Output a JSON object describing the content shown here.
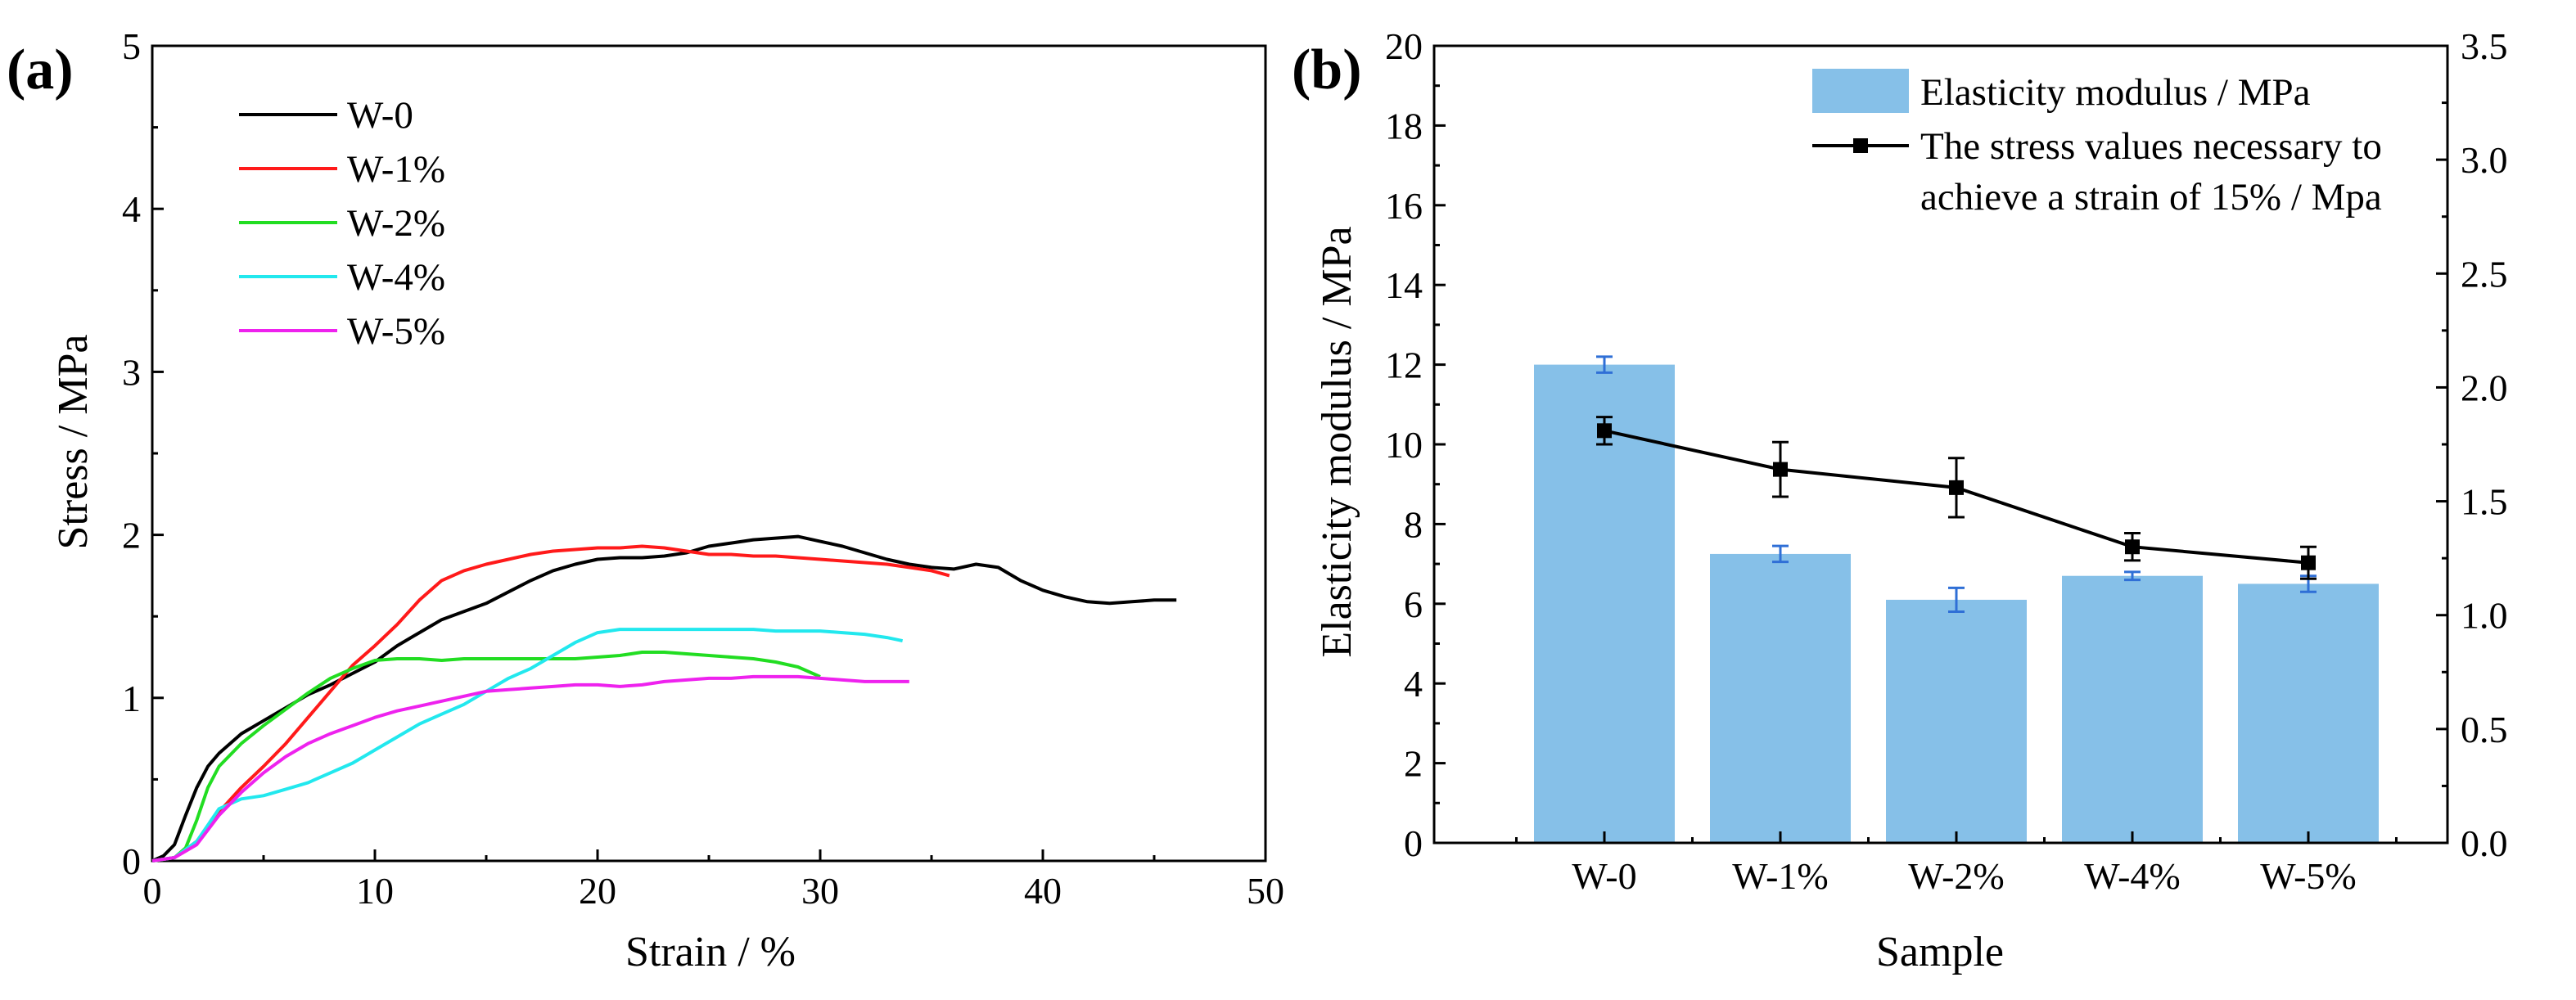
{
  "figure": {
    "panel_a_label": "(a)",
    "panel_b_label": "(b)"
  },
  "chart_data": [
    {
      "type": "line",
      "id": "a",
      "xlabel": "Strain / %",
      "ylabel": "Stress / MPa",
      "xlim": [
        0,
        50
      ],
      "ylim": [
        0,
        5
      ],
      "xticks": [
        0,
        10,
        20,
        30,
        40,
        50
      ],
      "yticks": [
        0,
        1,
        2,
        3,
        4,
        5
      ],
      "legend_position": "top-left",
      "series": [
        {
          "name": "W-0",
          "color": "#000000",
          "points": [
            [
              0,
              0
            ],
            [
              0.5,
              0.03
            ],
            [
              1,
              0.1
            ],
            [
              1.5,
              0.28
            ],
            [
              2,
              0.45
            ],
            [
              2.5,
              0.58
            ],
            [
              3,
              0.66
            ],
            [
              4,
              0.78
            ],
            [
              5,
              0.86
            ],
            [
              6,
              0.94
            ],
            [
              7,
              1.02
            ],
            [
              8,
              1.08
            ],
            [
              9,
              1.15
            ],
            [
              10,
              1.22
            ],
            [
              11,
              1.32
            ],
            [
              12,
              1.4
            ],
            [
              13,
              1.48
            ],
            [
              14,
              1.53
            ],
            [
              15,
              1.58
            ],
            [
              16,
              1.65
            ],
            [
              17,
              1.72
            ],
            [
              18,
              1.78
            ],
            [
              19,
              1.82
            ],
            [
              20,
              1.85
            ],
            [
              21,
              1.86
            ],
            [
              22,
              1.86
            ],
            [
              23,
              1.87
            ],
            [
              24,
              1.89
            ],
            [
              25,
              1.93
            ],
            [
              26,
              1.95
            ],
            [
              27,
              1.97
            ],
            [
              28,
              1.98
            ],
            [
              29,
              1.99
            ],
            [
              30,
              1.96
            ],
            [
              31,
              1.93
            ],
            [
              32,
              1.89
            ],
            [
              33,
              1.85
            ],
            [
              34,
              1.82
            ],
            [
              35,
              1.8
            ],
            [
              36,
              1.79
            ],
            [
              37,
              1.82
            ],
            [
              38,
              1.8
            ],
            [
              39,
              1.72
            ],
            [
              40,
              1.66
            ],
            [
              41,
              1.62
            ],
            [
              42,
              1.59
            ],
            [
              43,
              1.58
            ],
            [
              44,
              1.59
            ],
            [
              45,
              1.6
            ],
            [
              46,
              1.6
            ]
          ]
        },
        {
          "name": "W-1%",
          "color": "#ff1a1a",
          "points": [
            [
              0,
              0
            ],
            [
              1,
              0.02
            ],
            [
              2,
              0.12
            ],
            [
              3,
              0.3
            ],
            [
              4,
              0.45
            ],
            [
              5,
              0.58
            ],
            [
              6,
              0.72
            ],
            [
              7,
              0.88
            ],
            [
              8,
              1.04
            ],
            [
              9,
              1.2
            ],
            [
              10,
              1.32
            ],
            [
              11,
              1.45
            ],
            [
              12,
              1.6
            ],
            [
              13,
              1.72
            ],
            [
              14,
              1.78
            ],
            [
              15,
              1.82
            ],
            [
              16,
              1.85
            ],
            [
              17,
              1.88
            ],
            [
              18,
              1.9
            ],
            [
              19,
              1.91
            ],
            [
              20,
              1.92
            ],
            [
              21,
              1.92
            ],
            [
              22,
              1.93
            ],
            [
              23,
              1.92
            ],
            [
              24,
              1.9
            ],
            [
              25,
              1.88
            ],
            [
              26,
              1.88
            ],
            [
              27,
              1.87
            ],
            [
              28,
              1.87
            ],
            [
              29,
              1.86
            ],
            [
              30,
              1.85
            ],
            [
              31,
              1.84
            ],
            [
              32,
              1.83
            ],
            [
              33,
              1.82
            ],
            [
              34,
              1.8
            ],
            [
              35,
              1.78
            ],
            [
              35.8,
              1.75
            ]
          ]
        },
        {
          "name": "W-2%",
          "color": "#22dd22",
          "points": [
            [
              0,
              0
            ],
            [
              1,
              0.02
            ],
            [
              1.5,
              0.08
            ],
            [
              2,
              0.25
            ],
            [
              2.5,
              0.45
            ],
            [
              3,
              0.58
            ],
            [
              4,
              0.72
            ],
            [
              5,
              0.83
            ],
            [
              6,
              0.93
            ],
            [
              7,
              1.03
            ],
            [
              8,
              1.12
            ],
            [
              9,
              1.18
            ],
            [
              10,
              1.23
            ],
            [
              11,
              1.24
            ],
            [
              12,
              1.24
            ],
            [
              13,
              1.23
            ],
            [
              14,
              1.24
            ],
            [
              15,
              1.24
            ],
            [
              16,
              1.24
            ],
            [
              17,
              1.24
            ],
            [
              18,
              1.24
            ],
            [
              19,
              1.24
            ],
            [
              20,
              1.25
            ],
            [
              21,
              1.26
            ],
            [
              22,
              1.28
            ],
            [
              23,
              1.28
            ],
            [
              24,
              1.27
            ],
            [
              25,
              1.26
            ],
            [
              26,
              1.25
            ],
            [
              27,
              1.24
            ],
            [
              28,
              1.22
            ],
            [
              29,
              1.19
            ],
            [
              30,
              1.13
            ]
          ]
        },
        {
          "name": "W-4%",
          "color": "#22e8ee",
          "points": [
            [
              0,
              0
            ],
            [
              1,
              0.02
            ],
            [
              2,
              0.12
            ],
            [
              3,
              0.32
            ],
            [
              4,
              0.38
            ],
            [
              5,
              0.4
            ],
            [
              6,
              0.44
            ],
            [
              7,
              0.48
            ],
            [
              8,
              0.54
            ],
            [
              9,
              0.6
            ],
            [
              10,
              0.68
            ],
            [
              11,
              0.76
            ],
            [
              12,
              0.84
            ],
            [
              13,
              0.9
            ],
            [
              14,
              0.96
            ],
            [
              15,
              1.04
            ],
            [
              16,
              1.12
            ],
            [
              17,
              1.18
            ],
            [
              18,
              1.26
            ],
            [
              19,
              1.34
            ],
            [
              20,
              1.4
            ],
            [
              21,
              1.42
            ],
            [
              22,
              1.42
            ],
            [
              23,
              1.42
            ],
            [
              24,
              1.42
            ],
            [
              25,
              1.42
            ],
            [
              26,
              1.42
            ],
            [
              27,
              1.42
            ],
            [
              28,
              1.41
            ],
            [
              29,
              1.41
            ],
            [
              30,
              1.41
            ],
            [
              31,
              1.4
            ],
            [
              32,
              1.39
            ],
            [
              33,
              1.37
            ],
            [
              33.7,
              1.35
            ]
          ]
        },
        {
          "name": "W-5%",
          "color": "#ee22ee",
          "points": [
            [
              0,
              0
            ],
            [
              1,
              0.02
            ],
            [
              2,
              0.1
            ],
            [
              3,
              0.28
            ],
            [
              4,
              0.42
            ],
            [
              5,
              0.54
            ],
            [
              6,
              0.64
            ],
            [
              7,
              0.72
            ],
            [
              8,
              0.78
            ],
            [
              9,
              0.83
            ],
            [
              10,
              0.88
            ],
            [
              11,
              0.92
            ],
            [
              12,
              0.95
            ],
            [
              13,
              0.98
            ],
            [
              14,
              1.01
            ],
            [
              15,
              1.04
            ],
            [
              16,
              1.05
            ],
            [
              17,
              1.06
            ],
            [
              18,
              1.07
            ],
            [
              19,
              1.08
            ],
            [
              20,
              1.08
            ],
            [
              21,
              1.07
            ],
            [
              22,
              1.08
            ],
            [
              23,
              1.1
            ],
            [
              24,
              1.11
            ],
            [
              25,
              1.12
            ],
            [
              26,
              1.12
            ],
            [
              27,
              1.13
            ],
            [
              28,
              1.13
            ],
            [
              29,
              1.13
            ],
            [
              30,
              1.12
            ],
            [
              31,
              1.11
            ],
            [
              32,
              1.1
            ],
            [
              33,
              1.1
            ],
            [
              34,
              1.1
            ]
          ]
        }
      ]
    },
    {
      "type": "bar",
      "id": "b",
      "xlabel": "Sample",
      "ylabel": "Elasticity modulus / MPa",
      "categories": [
        "W-0",
        "W-1%",
        "W-2%",
        "W-4%",
        "W-5%"
      ],
      "ylim": [
        0,
        20
      ],
      "yticks": [
        0,
        2,
        4,
        6,
        8,
        10,
        12,
        14,
        16,
        18,
        20
      ],
      "y2lim": [
        0.0,
        3.5
      ],
      "y2ticks": [
        "0.0",
        "0.5",
        "1.0",
        "1.5",
        "2.0",
        "2.5",
        "3.0",
        "3.5"
      ],
      "legend_position": "top-right",
      "bar_color": "#86c0e8",
      "bar_error_color": "#2f6fd6",
      "line_color": "#000000",
      "series": [
        {
          "name": "Elasticity modulus / MPa",
          "kind": "bar",
          "axis": "left",
          "values": [
            12.0,
            7.25,
            6.1,
            6.7,
            6.5
          ],
          "errors": [
            0.2,
            0.2,
            0.3,
            0.1,
            0.2
          ]
        },
        {
          "name": "The stress values necessary to achieve a strain of 15% / Mpa",
          "legend_lines": [
            "The stress values necessary to",
            "achieve a strain of 15% / Mpa"
          ],
          "kind": "line",
          "axis": "right",
          "values": [
            1.81,
            1.64,
            1.56,
            1.3,
            1.23
          ],
          "errors": [
            0.06,
            0.12,
            0.13,
            0.06,
            0.07
          ]
        }
      ]
    }
  ]
}
